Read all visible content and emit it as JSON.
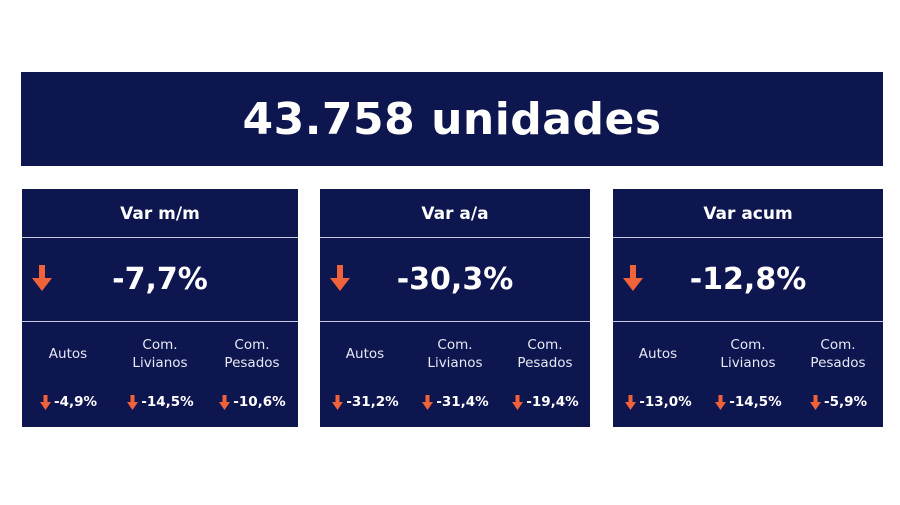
{
  "banner": {
    "text": "43.758 unidades"
  },
  "colors": {
    "background": "#0e1650",
    "arrow": "#f0623a",
    "text": "#ffffff"
  },
  "panels": [
    {
      "title": "Var m/m",
      "value": "-7,7%",
      "trend": "down-arrow-icon",
      "categories": [
        "Autos",
        "Com.\nLivianos",
        "Com.\nPesados"
      ],
      "values": [
        "-4,9%",
        "-14,5%",
        "-10,6%"
      ]
    },
    {
      "title": "Var a/a",
      "value": "-30,3%",
      "trend": "down-arrow-icon",
      "categories": [
        "Autos",
        "Com.\nLivianos",
        "Com.\nPesados"
      ],
      "values": [
        "-31,2%",
        "-31,4%",
        "-19,4%"
      ]
    },
    {
      "title": "Var acum",
      "value": "-12,8%",
      "trend": "down-arrow-icon",
      "categories": [
        "Autos",
        "Com.\nLivianos",
        "Com.\nPesados"
      ],
      "values": [
        "-13,0%",
        "-14,5%",
        "-5,9%"
      ]
    }
  ]
}
